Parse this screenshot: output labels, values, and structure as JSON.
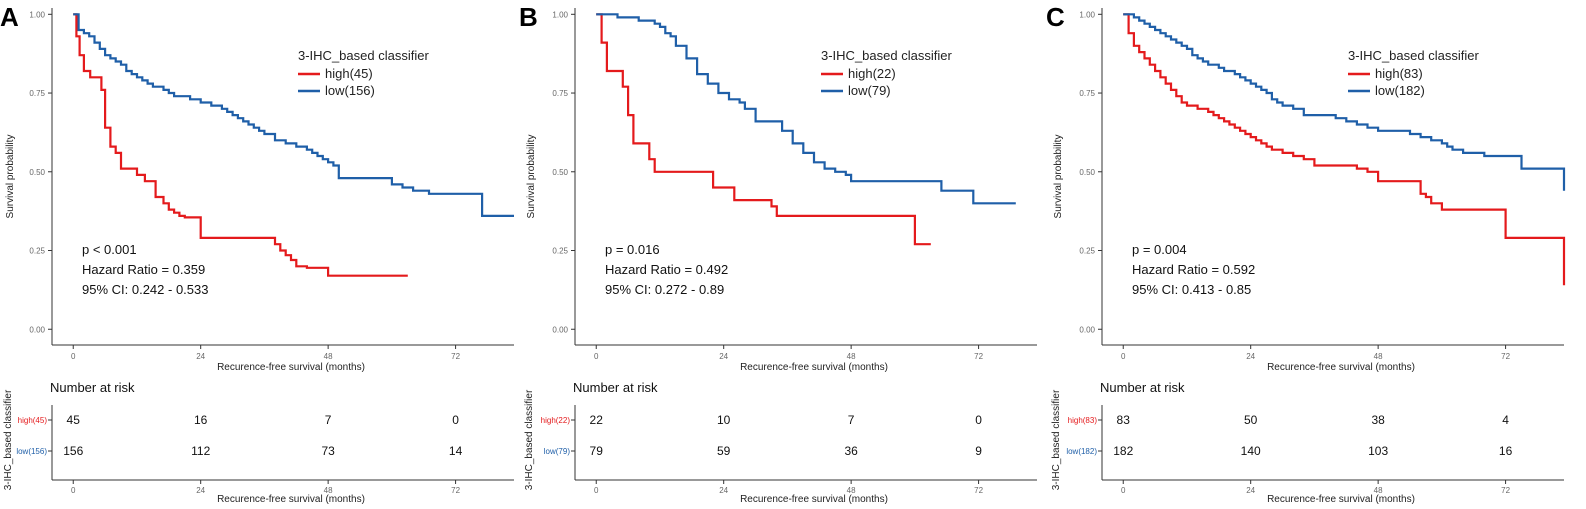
{
  "colors": {
    "high": "#e41a1c",
    "low": "#1f5fa8",
    "axis": "#333333",
    "tick": "#666666"
  },
  "shared": {
    "xlabel": "Recurence-free survival (months)",
    "ylabel": "Survival probability",
    "legend_title": "3-IHC_based classifier",
    "risk_title": "Number at risk",
    "risk_ylabel": "3-IHC_based classifier",
    "xticks": [
      "0",
      "24",
      "48",
      "72"
    ],
    "yticks": [
      "0.00",
      "0.25",
      "0.50",
      "0.75",
      "1.00"
    ]
  },
  "chart_data": [
    {
      "panel": "A",
      "type": "line",
      "subtype": "kaplan-meier",
      "xlim": [
        -4,
        83
      ],
      "ylim": [
        -0.05,
        1.02
      ],
      "stats": {
        "p": "p < 0.001",
        "hr": "Hazard Ratio = 0.359",
        "ci": "95% CI: 0.242 - 0.533"
      },
      "series": [
        {
          "name": "high",
          "label": "high(45)",
          "color_key": "high",
          "x": [
            0,
            0.6,
            1.2,
            2.0,
            3.2,
            5.3,
            6.0,
            7.0,
            8.0,
            9.0,
            12.0,
            13.5,
            15.5,
            17.0,
            18.0,
            19.0,
            20.0,
            21.0,
            22.0,
            24.0,
            32.0,
            38.0,
            39.0,
            40.0,
            41.0,
            42.0,
            44.0,
            48.0,
            63.0
          ],
          "y": [
            1.0,
            0.93,
            0.87,
            0.82,
            0.8,
            0.76,
            0.64,
            0.58,
            0.56,
            0.51,
            0.49,
            0.47,
            0.42,
            0.4,
            0.38,
            0.37,
            0.36,
            0.355,
            0.355,
            0.29,
            0.29,
            0.27,
            0.25,
            0.235,
            0.22,
            0.2,
            0.195,
            0.17,
            0.17
          ]
        },
        {
          "name": "low",
          "label": "low(156)",
          "color_key": "low",
          "x": [
            0,
            1,
            2,
            3,
            4,
            5,
            6,
            7,
            8,
            9,
            10,
            11,
            12,
            13,
            14,
            15,
            16,
            17,
            18,
            19,
            20,
            22,
            24,
            26,
            28,
            29,
            30,
            31,
            32,
            33,
            34,
            35,
            36,
            38,
            40,
            42,
            44,
            45,
            46,
            47,
            48,
            49,
            50,
            52,
            60,
            62,
            64,
            67,
            72,
            77,
            83
          ],
          "y": [
            1.0,
            0.95,
            0.94,
            0.93,
            0.91,
            0.89,
            0.87,
            0.86,
            0.85,
            0.84,
            0.82,
            0.81,
            0.8,
            0.79,
            0.78,
            0.77,
            0.77,
            0.76,
            0.75,
            0.74,
            0.74,
            0.73,
            0.72,
            0.71,
            0.7,
            0.69,
            0.68,
            0.67,
            0.66,
            0.65,
            0.64,
            0.63,
            0.62,
            0.6,
            0.59,
            0.58,
            0.57,
            0.56,
            0.55,
            0.54,
            0.53,
            0.52,
            0.48,
            0.48,
            0.46,
            0.45,
            0.44,
            0.43,
            0.43,
            0.36,
            0.36
          ]
        }
      ],
      "risk_table": {
        "rows": [
          {
            "label": "high(45)",
            "color_key": "high",
            "values": [
              "45",
              "16",
              "7",
              "0"
            ]
          },
          {
            "label": "low(156)",
            "color_key": "low",
            "values": [
              "156",
              "112",
              "73",
              "14"
            ]
          }
        ]
      }
    },
    {
      "panel": "B",
      "type": "line",
      "subtype": "kaplan-meier",
      "xlim": [
        -4,
        83
      ],
      "ylim": [
        -0.05,
        1.02
      ],
      "stats": {
        "p": "p = 0.016",
        "hr": "Hazard Ratio = 0.492",
        "ci": "95% CI: 0.272 - 0.89"
      },
      "series": [
        {
          "name": "high",
          "label": "high(22)",
          "color_key": "high",
          "x": [
            0,
            1,
            2,
            5,
            6,
            7,
            8,
            10,
            11,
            20,
            22,
            24,
            26,
            32,
            33,
            34,
            60,
            63
          ],
          "y": [
            1.0,
            0.91,
            0.82,
            0.77,
            0.68,
            0.59,
            0.59,
            0.54,
            0.5,
            0.5,
            0.45,
            0.45,
            0.41,
            0.41,
            0.39,
            0.36,
            0.27,
            0.27
          ]
        },
        {
          "name": "low",
          "label": "low(79)",
          "color_key": "low",
          "x": [
            0,
            4,
            8,
            11,
            12,
            13,
            14,
            15,
            17,
            19,
            21,
            23,
            25,
            27,
            28,
            30,
            33,
            35,
            37,
            39,
            41,
            43,
            45,
            47,
            48,
            49,
            51,
            65,
            68,
            71,
            79
          ],
          "y": [
            1.0,
            0.99,
            0.98,
            0.97,
            0.96,
            0.94,
            0.93,
            0.9,
            0.86,
            0.81,
            0.78,
            0.75,
            0.73,
            0.72,
            0.7,
            0.66,
            0.66,
            0.63,
            0.59,
            0.56,
            0.53,
            0.51,
            0.5,
            0.49,
            0.47,
            0.47,
            0.47,
            0.44,
            0.44,
            0.4,
            0.4
          ]
        }
      ],
      "risk_table": {
        "rows": [
          {
            "label": "high(22)",
            "color_key": "high",
            "values": [
              "22",
              "10",
              "7",
              "0"
            ]
          },
          {
            "label": "low(79)",
            "color_key": "low",
            "values": [
              "79",
              "59",
              "36",
              "9"
            ]
          }
        ]
      }
    },
    {
      "panel": "C",
      "type": "line",
      "subtype": "kaplan-meier",
      "xlim": [
        -4,
        83
      ],
      "ylim": [
        -0.05,
        1.02
      ],
      "stats": {
        "p": "p = 0.004",
        "hr": "Hazard Ratio = 0.592",
        "ci": "95% CI: 0.413 - 0.85"
      },
      "series": [
        {
          "name": "high",
          "label": "high(83)",
          "color_key": "high",
          "x": [
            0,
            1,
            2,
            3,
            4,
            5,
            6,
            7,
            8,
            9,
            10,
            11,
            12,
            14,
            16,
            17,
            18,
            19,
            20,
            21,
            22,
            23,
            24,
            25,
            26,
            27,
            28,
            30,
            32,
            34,
            36,
            40,
            44,
            46,
            48,
            52,
            56,
            57,
            58,
            60,
            72,
            83
          ],
          "y": [
            1.0,
            0.94,
            0.9,
            0.88,
            0.86,
            0.84,
            0.82,
            0.8,
            0.78,
            0.76,
            0.74,
            0.72,
            0.71,
            0.7,
            0.69,
            0.68,
            0.67,
            0.66,
            0.65,
            0.64,
            0.63,
            0.62,
            0.61,
            0.6,
            0.59,
            0.58,
            0.57,
            0.56,
            0.55,
            0.54,
            0.52,
            0.52,
            0.51,
            0.5,
            0.47,
            0.47,
            0.43,
            0.42,
            0.4,
            0.38,
            0.29,
            0.14
          ]
        },
        {
          "name": "low",
          "label": "low(182)",
          "color_key": "low",
          "x": [
            0,
            2,
            3,
            4,
            5,
            6,
            7,
            8,
            9,
            10,
            11,
            12,
            13,
            14,
            15,
            16,
            17,
            18,
            19,
            20,
            21,
            22,
            23,
            24,
            25,
            26,
            27,
            28,
            29,
            30,
            32,
            34,
            36,
            38,
            40,
            42,
            44,
            46,
            48,
            50,
            54,
            56,
            58,
            60,
            61,
            62,
            64,
            68,
            70,
            72,
            75,
            83
          ],
          "y": [
            1.0,
            0.99,
            0.98,
            0.97,
            0.96,
            0.95,
            0.94,
            0.93,
            0.92,
            0.91,
            0.9,
            0.89,
            0.87,
            0.86,
            0.85,
            0.84,
            0.84,
            0.83,
            0.82,
            0.82,
            0.81,
            0.8,
            0.79,
            0.78,
            0.77,
            0.76,
            0.75,
            0.73,
            0.72,
            0.71,
            0.7,
            0.68,
            0.68,
            0.68,
            0.67,
            0.66,
            0.65,
            0.64,
            0.63,
            0.63,
            0.62,
            0.61,
            0.6,
            0.59,
            0.58,
            0.57,
            0.56,
            0.55,
            0.55,
            0.55,
            0.51,
            0.44
          ]
        }
      ],
      "risk_table": {
        "rows": [
          {
            "label": "high(83)",
            "color_key": "high",
            "values": [
              "83",
              "50",
              "38",
              "4"
            ]
          },
          {
            "label": "low(182)",
            "color_key": "low",
            "values": [
              "182",
              "140",
              "103",
              "16"
            ]
          }
        ]
      }
    }
  ]
}
